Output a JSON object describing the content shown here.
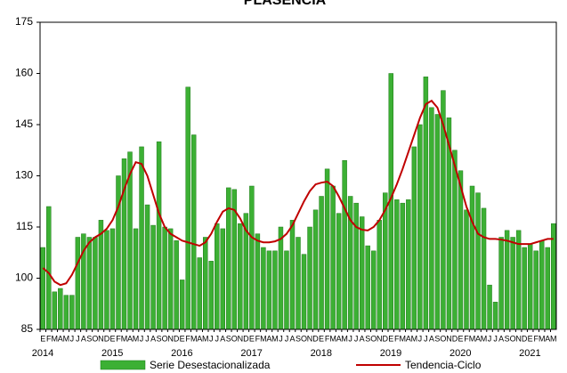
{
  "chart_data": {
    "type": "bar_line",
    "title": "PLASENCIA",
    "categories": [
      "E",
      "F",
      "M",
      "A",
      "M",
      "J",
      "J",
      "A",
      "S",
      "O",
      "N",
      "D",
      "E",
      "F",
      "M",
      "A",
      "M",
      "J",
      "J",
      "A",
      "S",
      "O",
      "N",
      "D",
      "E",
      "F",
      "M",
      "A",
      "M",
      "J",
      "J",
      "A",
      "S",
      "O",
      "N",
      "D",
      "E",
      "F",
      "M",
      "A",
      "M",
      "J",
      "J",
      "A",
      "S",
      "O",
      "N",
      "D",
      "E",
      "F",
      "M",
      "A",
      "M",
      "J",
      "J",
      "A",
      "S",
      "O",
      "N",
      "D",
      "E",
      "F",
      "M",
      "A",
      "M",
      "J",
      "J",
      "A",
      "S",
      "O",
      "N",
      "D",
      "E",
      "F",
      "M",
      "A",
      "M",
      "J",
      "J",
      "A",
      "S",
      "O",
      "N",
      "D",
      "E",
      "F",
      "M",
      "A",
      "M"
    ],
    "years": [
      "2014",
      "2015",
      "2016",
      "2017",
      "2018",
      "2019",
      "2020",
      "2021"
    ],
    "series": [
      {
        "name": "Serie Desestacionalizada",
        "color": "#3cb034",
        "values": [
          109,
          121,
          96,
          97,
          95,
          95,
          112,
          113,
          112,
          112,
          117,
          114,
          114.5,
          130,
          135,
          137,
          114.5,
          138.5,
          121.5,
          115.5,
          140,
          115,
          114.5,
          111,
          99.5,
          156,
          142,
          106,
          112,
          105,
          116,
          114.5,
          126.5,
          126,
          116,
          119,
          127,
          113,
          109,
          108,
          108,
          115,
          108,
          117,
          112,
          107,
          115,
          120,
          124,
          132,
          127,
          119,
          134.5,
          124,
          122,
          118,
          109.5,
          108,
          117,
          125,
          160,
          123,
          122,
          123,
          138.5,
          145,
          159,
          150,
          148,
          155,
          147,
          137.5,
          131.5,
          120,
          127,
          125,
          120.5,
          98,
          93,
          112,
          114,
          112,
          114,
          109,
          110,
          108,
          111,
          109,
          116
        ]
      },
      {
        "name": "Tendencia-Ciclo",
        "color": "#c00000",
        "values": [
          103,
          101.5,
          99,
          98,
          98.5,
          101,
          104.5,
          108,
          110.5,
          112,
          113,
          114.5,
          117,
          121,
          126,
          130.5,
          134,
          133.5,
          130,
          124.5,
          119,
          115,
          113,
          112,
          111,
          110.5,
          110,
          109.5,
          110.5,
          113,
          116.5,
          119.5,
          120.5,
          120,
          117.5,
          114,
          112,
          111,
          110.5,
          110.5,
          110.8,
          111.5,
          113,
          115.5,
          119,
          122.5,
          125.5,
          127.5,
          128,
          128.3,
          127,
          124,
          120.5,
          117,
          115,
          114.2,
          114,
          115,
          117,
          120,
          123.5,
          127.5,
          132,
          137,
          142,
          147,
          151,
          152,
          150,
          145,
          139,
          133,
          127,
          121,
          116.5,
          113,
          112,
          111.5,
          111.5,
          111.3,
          111,
          110.5,
          110,
          110,
          110,
          110.5,
          111,
          111.5,
          111.5
        ]
      }
    ],
    "ylim": [
      85,
      175
    ],
    "yticks": [
      85,
      100,
      115,
      130,
      145,
      160,
      175
    ]
  }
}
